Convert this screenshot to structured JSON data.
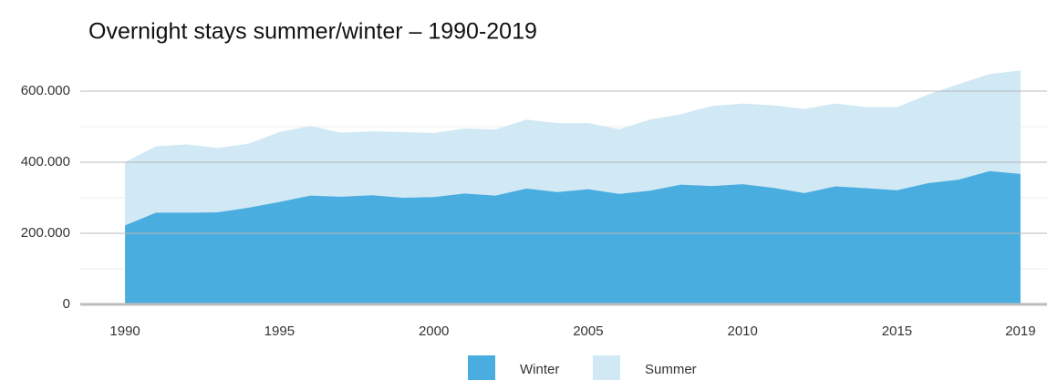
{
  "chart_data": {
    "type": "stacked_area",
    "title": "Overnight stays summer/winter – 1990-2019",
    "x": [
      1990,
      1991,
      1992,
      1993,
      1994,
      1995,
      1996,
      1997,
      1998,
      1999,
      2000,
      2001,
      2002,
      2003,
      2004,
      2005,
      2006,
      2007,
      2008,
      2009,
      2010,
      2011,
      2012,
      2013,
      2014,
      2015,
      2016,
      2017,
      2018,
      2019
    ],
    "series": [
      {
        "name": "Winter",
        "color": "#4aaddf",
        "values": [
          222000,
          258000,
          258000,
          259000,
          272000,
          288000,
          306000,
          303000,
          307000,
          300000,
          302000,
          312000,
          306000,
          326000,
          316000,
          324000,
          311000,
          320000,
          337000,
          333000,
          338000,
          328000,
          313000,
          332000,
          327000,
          321000,
          341000,
          351000,
          375000,
          367000
        ]
      },
      {
        "name": "Summer",
        "color": "#d1e8f5",
        "values": [
          178000,
          187000,
          192000,
          181000,
          180000,
          197000,
          196000,
          180000,
          180000,
          185000,
          180000,
          183000,
          186000,
          194000,
          194000,
          186000,
          182000,
          200000,
          198000,
          225000,
          227000,
          232000,
          237000,
          233000,
          228000,
          234000,
          249000,
          269000,
          273000,
          291000
        ]
      }
    ],
    "xlim": [
      1988.55,
      2019.86
    ],
    "xticks": [
      1990,
      1995,
      2000,
      2005,
      2010,
      2015,
      2019
    ],
    "ylim": [
      0,
      700000
    ],
    "yticks": [
      0,
      {
        "value": 200000,
        "label": "200.000"
      },
      {
        "value": 400000,
        "label": "400.000"
      },
      {
        "value": 600000,
        "label": "600.000"
      }
    ],
    "minor_yticks": [
      100000,
      300000,
      500000
    ],
    "grid": true,
    "legend": "bottom"
  }
}
